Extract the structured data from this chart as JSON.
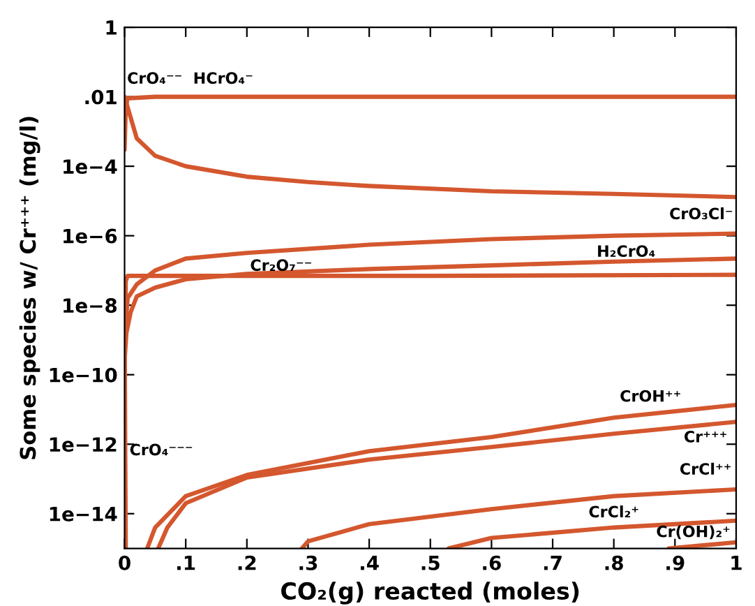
{
  "chart_data": {
    "type": "line",
    "xlabel": "CO₂(g) reacted (moles)",
    "ylabel": "Some species w/ Cr⁺⁺⁺ (mg/l)",
    "log": "y",
    "grid": false,
    "marker": "none",
    "line_style": "solid",
    "xlim": [
      0,
      1
    ],
    "xticks": [
      {
        "value": 0,
        "label": "0"
      },
      {
        "value": 0.1,
        "label": ".1"
      },
      {
        "value": 0.2,
        "label": ".2"
      },
      {
        "value": 0.3,
        "label": ".3"
      },
      {
        "value": 0.4,
        "label": ".4"
      },
      {
        "value": 0.5,
        "label": ".5"
      },
      {
        "value": 0.6,
        "label": ".6"
      },
      {
        "value": 0.7,
        "label": ".7"
      },
      {
        "value": 0.8,
        "label": ".8"
      },
      {
        "value": 0.9,
        "label": ".9"
      },
      {
        "value": 1,
        "label": "1"
      }
    ],
    "ylim": [
      1e-15,
      1
    ],
    "yticks": [
      {
        "value": 1,
        "label": "1"
      },
      {
        "value": 0.01,
        "label": ".01"
      },
      {
        "value": 0.0001,
        "label": "1e−4"
      },
      {
        "value": 1e-06,
        "label": "1e−6"
      },
      {
        "value": 1e-08,
        "label": "1e−8"
      },
      {
        "value": 1e-10,
        "label": "1e−10"
      },
      {
        "value": 1e-12,
        "label": "1e−12"
      },
      {
        "value": 1e-14,
        "label": "1e−14"
      }
    ],
    "series": [
      {
        "name": "HCrO₄⁻",
        "color": "#d4572e",
        "x": [
          0,
          0.002,
          0.005,
          0.05,
          0.5,
          1
        ],
        "values": [
          0.0003,
          0.005,
          0.009,
          0.01,
          0.01,
          0.01
        ]
      },
      {
        "name": "CrO₄⁻⁻",
        "color": "#d4572e",
        "x": [
          0,
          0.005,
          0.02,
          0.05,
          0.1,
          0.2,
          0.3,
          0.4,
          0.6,
          0.8,
          1
        ],
        "values": [
          0.01,
          0.005,
          0.00063,
          0.0002,
          0.0001,
          5e-05,
          3.5e-05,
          2.7e-05,
          1.9e-05,
          1.6e-05,
          1.3e-05
        ]
      },
      {
        "name": "CrO₃Cl⁻",
        "color": "#d4572e",
        "x": [
          0,
          0.005,
          0.02,
          0.05,
          0.1,
          0.2,
          0.4,
          0.6,
          0.8,
          1
        ],
        "values": [
          1e-09,
          1.6e-08,
          4e-08,
          1e-07,
          2.2e-07,
          3.2e-07,
          5.5e-07,
          8e-07,
          1e-06,
          1.15e-06
        ]
      },
      {
        "name": "H₂CrO₄",
        "color": "#d4572e",
        "x": [
          0,
          0.003,
          0.01,
          0.02,
          0.05,
          0.1,
          0.2,
          0.4,
          0.6,
          0.8,
          1
        ],
        "values": [
          2.5e-10,
          1.6e-09,
          6.3e-09,
          1.8e-08,
          3.2e-08,
          5.6e-08,
          8e-08,
          1.1e-07,
          1.4e-07,
          1.8e-07,
          2.2e-07
        ]
      },
      {
        "name": "Cr₂O₇⁻⁻",
        "color": "#d4572e",
        "x": [
          0,
          0.002,
          0.005,
          0.5,
          1
        ],
        "values": [
          1e-10,
          5e-08,
          7e-08,
          7e-08,
          7.5e-08
        ]
      },
      {
        "name": "CrO₄⁻⁻⁻",
        "color": "#d4572e",
        "x": [
          0,
          0.001,
          0.002
        ],
        "values": [
          1e-08,
          1e-12,
          1e-15
        ]
      },
      {
        "name": "CrOH⁺⁺",
        "color": "#d4572e",
        "x": [
          0.037,
          0.05,
          0.1,
          0.2,
          0.4,
          0.6,
          0.8,
          1
        ],
        "values": [
          1e-15,
          4e-15,
          3.2e-14,
          1.3e-13,
          6.3e-13,
          1.6e-12,
          5.8e-12,
          1.35e-11
        ]
      },
      {
        "name": "Cr⁺⁺⁺",
        "color": "#d4572e",
        "x": [
          0.055,
          0.07,
          0.1,
          0.2,
          0.4,
          0.6,
          0.8,
          1
        ],
        "values": [
          1e-15,
          4e-15,
          2e-14,
          1.1e-13,
          3.6e-13,
          8.3e-13,
          2e-12,
          4.4e-12
        ]
      },
      {
        "name": "CrCl⁺⁺",
        "color": "#d4572e",
        "x": [
          0.29,
          0.3,
          0.4,
          0.6,
          0.8,
          1
        ],
        "values": [
          1e-15,
          1.6e-15,
          5e-15,
          1.35e-14,
          3.2e-14,
          5e-14
        ]
      },
      {
        "name": "CrCl₂⁺",
        "color": "#d4572e",
        "x": [
          0.53,
          0.6,
          0.8,
          1
        ],
        "values": [
          1e-15,
          2e-15,
          4e-15,
          6.3e-15
        ]
      },
      {
        "name": "Cr(OH)₂⁺",
        "color": "#d4572e",
        "x": [
          0.89,
          1
        ],
        "values": [
          1e-15,
          1.5e-15
        ]
      }
    ]
  }
}
